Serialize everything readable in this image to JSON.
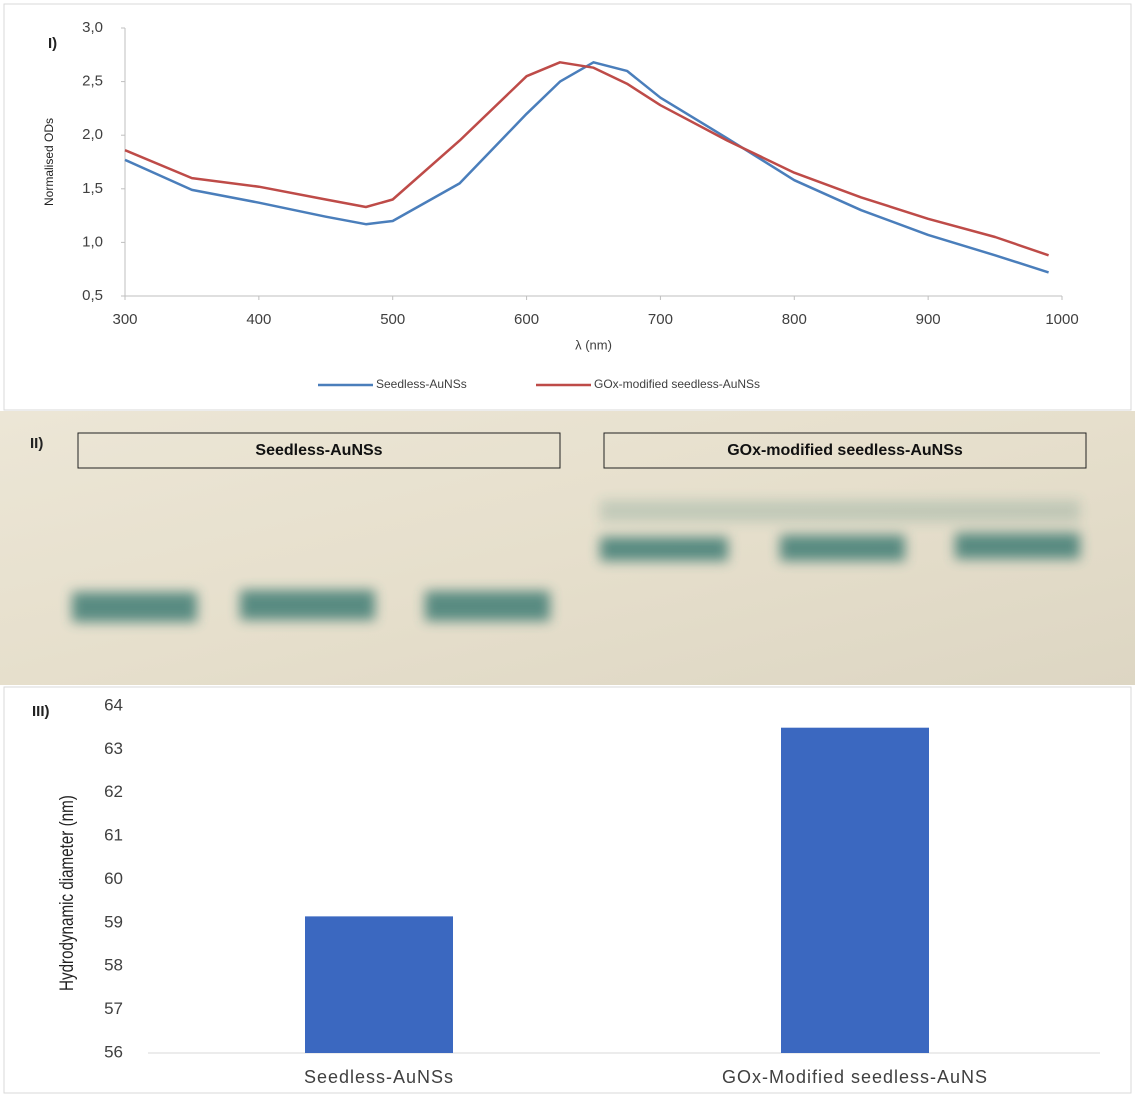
{
  "chart_data": [
    {
      "type": "line",
      "panel_label": "I)",
      "y_label": "Normalised ODs",
      "x_label": "λ (nm)",
      "x": [
        300,
        350,
        400,
        450,
        480,
        500,
        550,
        600,
        625,
        650,
        675,
        700,
        750,
        800,
        850,
        900,
        950,
        990
      ],
      "series": [
        {
          "name": "Seedless-AuNSs",
          "color": "#4a7ebb",
          "values": [
            1.77,
            1.49,
            1.37,
            1.24,
            1.17,
            1.2,
            1.55,
            2.2,
            2.5,
            2.68,
            2.6,
            2.35,
            1.97,
            1.58,
            1.3,
            1.07,
            0.88,
            0.72
          ]
        },
        {
          "name": "GOx-modified seedless-AuNSs",
          "color": "#be4b48",
          "values": [
            1.86,
            1.6,
            1.52,
            1.4,
            1.33,
            1.4,
            1.95,
            2.55,
            2.68,
            2.63,
            2.48,
            2.28,
            1.95,
            1.65,
            1.42,
            1.22,
            1.05,
            0.88
          ]
        }
      ],
      "xlim": [
        300,
        1000
      ],
      "xticks": [
        300,
        400,
        500,
        600,
        700,
        800,
        900,
        1000
      ],
      "ylim": [
        0.5,
        3.0
      ],
      "yticks": [
        {
          "value": 0.5,
          "label": "0,5"
        },
        {
          "value": 1.0,
          "label": "1,0"
        },
        {
          "value": 1.5,
          "label": "1,5"
        },
        {
          "value": 2.0,
          "label": "2,0"
        },
        {
          "value": 2.5,
          "label": "2,5"
        },
        {
          "value": 3.0,
          "label": "3,0"
        }
      ],
      "legend": "bottom"
    },
    {
      "type": "bar",
      "panel_label": "III)",
      "y_label": "Hydrodynamic diameter (nm)",
      "categories": [
        "Seedless-AuNSs",
        "GOx-Modified seedless-AuNS"
      ],
      "values": [
        59.15,
        63.5
      ],
      "color": "#3b68c0",
      "ylim": [
        56,
        64
      ],
      "yticks": [
        56,
        57,
        58,
        59,
        60,
        61,
        62,
        63,
        64
      ],
      "grid": false
    }
  ],
  "gel": {
    "panel_label": "II)",
    "lanes": [
      "Seedless-AuNSs",
      "GOx-modified seedless-AuNSs"
    ]
  }
}
